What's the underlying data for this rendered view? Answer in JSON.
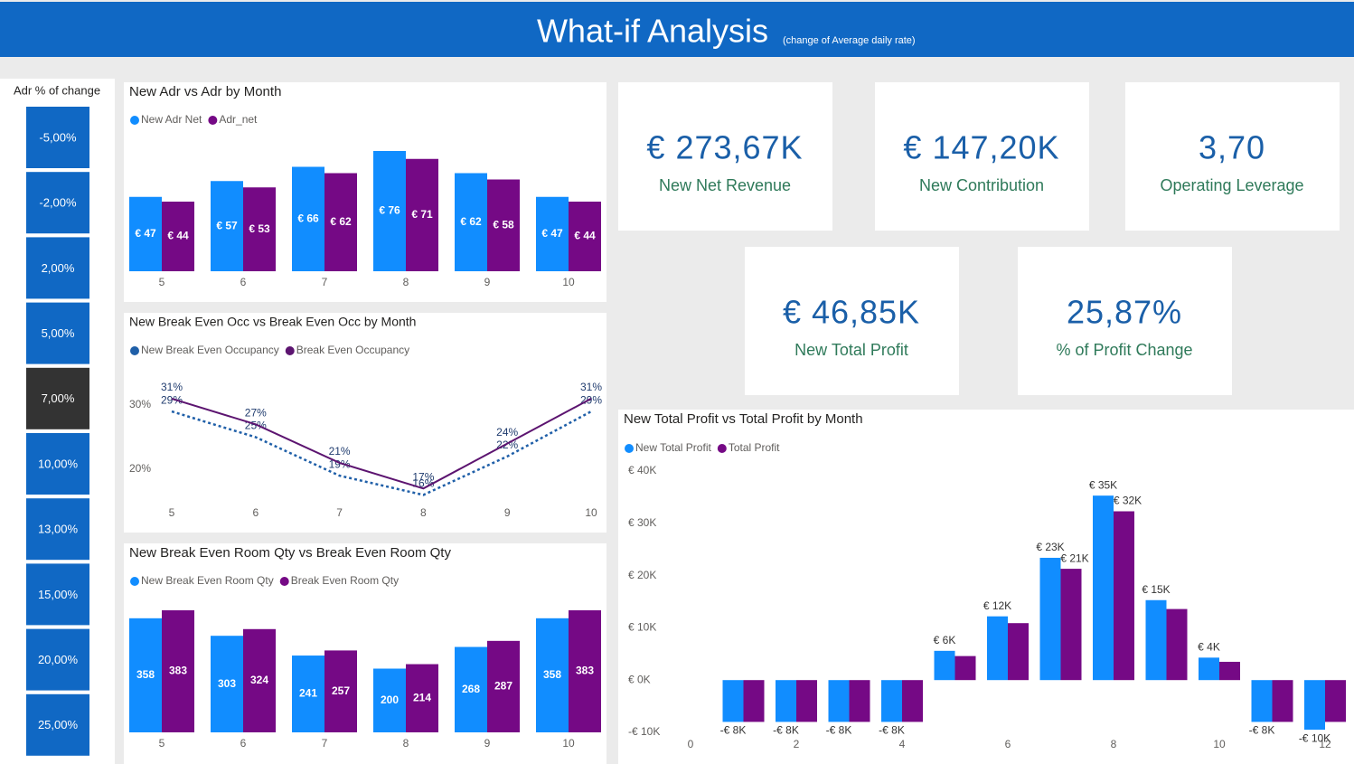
{
  "header": {
    "title": "What-if Analysis",
    "subtitle": "(change of Average daily rate)"
  },
  "slicer": {
    "title": "Adr % of change",
    "items": [
      "-5,00%",
      "-2,00%",
      "2,00%",
      "5,00%",
      "7,00%",
      "10,00%",
      "13,00%",
      "15,00%",
      "20,00%",
      "25,00%"
    ],
    "selected": 4
  },
  "kpis": [
    {
      "value": "€ 273,67K",
      "label": "New Net Revenue"
    },
    {
      "value": "€ 147,20K",
      "label": "New Contribution"
    },
    {
      "value": "3,70",
      "label": "Operating Leverage"
    },
    {
      "value": "€ 46,85K",
      "label": "New Total Profit"
    },
    {
      "value": "25,87%",
      "label": "% of Profit Change"
    }
  ],
  "chart_data": [
    {
      "type": "bar",
      "title": "New Adr vs Adr by Month",
      "categories": [
        5,
        6,
        7,
        8,
        9,
        10
      ],
      "series": [
        {
          "name": "New Adr Net",
          "color": "#118dff",
          "values": [
            47,
            57,
            66,
            76,
            62,
            47
          ],
          "value_labels": [
            "€ 47",
            "€ 57",
            "€ 66",
            "€ 76",
            "€ 62",
            "€ 47"
          ]
        },
        {
          "name": "Adr_net",
          "color": "#750985",
          "values": [
            44,
            53,
            62,
            71,
            58,
            44
          ],
          "value_labels": [
            "€ 44",
            "€ 53",
            "€ 62",
            "€ 71",
            "€ 58",
            "€ 44"
          ]
        }
      ]
    },
    {
      "type": "line",
      "title": "New Break Even Occ vs Break Even Occ by Month",
      "categories": [
        5,
        6,
        7,
        8,
        9,
        10
      ],
      "ylim": [
        15,
        35
      ],
      "yticks": [
        {
          "value": 20,
          "label": "20%"
        },
        {
          "value": 30,
          "label": "30%"
        }
      ],
      "series": [
        {
          "name": "New Break Even Occupancy",
          "color": "#1f5fa8",
          "dashed": true,
          "values": [
            29,
            25,
            19,
            16,
            22,
            29
          ],
          "value_labels": [
            "29%",
            "25%",
            "19%",
            "16%",
            "22%",
            "29%"
          ]
        },
        {
          "name": "Break Even Occupancy",
          "color": "#5c1470",
          "values": [
            31,
            27,
            21,
            17,
            24,
            31
          ],
          "value_labels": [
            "31%",
            "27%",
            "21%",
            "17%",
            "24%",
            "31%"
          ]
        }
      ]
    },
    {
      "type": "bar",
      "title": "New Break Even Room Qty vs Break Even Room Qty",
      "categories": [
        5,
        6,
        7,
        8,
        9,
        10
      ],
      "series": [
        {
          "name": "New Break Even Room Qty",
          "color": "#118dff",
          "values": [
            358,
            303,
            241,
            200,
            268,
            358
          ]
        },
        {
          "name": "Break Even Room Qty",
          "color": "#750985",
          "values": [
            383,
            324,
            257,
            214,
            287,
            383
          ]
        }
      ]
    },
    {
      "type": "xbar",
      "title": "New Total Profit vs Total Profit by Month",
      "x": [
        1,
        2,
        3,
        4,
        5,
        6,
        7,
        8,
        9,
        10,
        11,
        12
      ],
      "xlim": [
        -1.1,
        12.4
      ],
      "xticks": [
        0,
        2,
        4,
        6,
        8,
        10,
        12
      ],
      "ylim": [
        -10000,
        40000
      ],
      "yticks": [
        {
          "value": -10000,
          "label": "-€ 10K"
        },
        {
          "value": 0,
          "label": "€ 0K"
        },
        {
          "value": 10000,
          "label": "€ 10K"
        },
        {
          "value": 20000,
          "label": "€ 20K"
        },
        {
          "value": 30000,
          "label": "€ 30K"
        },
        {
          "value": 40000,
          "label": "€ 40K"
        }
      ],
      "series": [
        {
          "name": "New Total Profit",
          "color": "#118dff",
          "values": [
            -8000,
            -8000,
            -8000,
            -8000,
            5600,
            12200,
            23400,
            35300,
            15300,
            4300,
            -8000,
            -9500
          ],
          "value_labels": [
            "-€ 8K",
            "-€ 8K",
            "-€ 8K",
            "-€ 8K",
            "€ 6K",
            "€ 12K",
            "€ 23K",
            "€ 35K",
            "€ 15K",
            "€ 4K",
            "-€ 8K",
            "-€ 10K"
          ]
        },
        {
          "name": "Total Profit",
          "color": "#750985",
          "values": [
            -8000,
            -8000,
            -8000,
            -8000,
            4600,
            10900,
            21300,
            32300,
            13600,
            3500,
            -8000,
            -8000
          ],
          "value_labels": [
            null,
            null,
            null,
            null,
            null,
            null,
            "€ 21K",
            "€ 32K",
            null,
            null,
            null,
            null
          ]
        }
      ]
    }
  ]
}
